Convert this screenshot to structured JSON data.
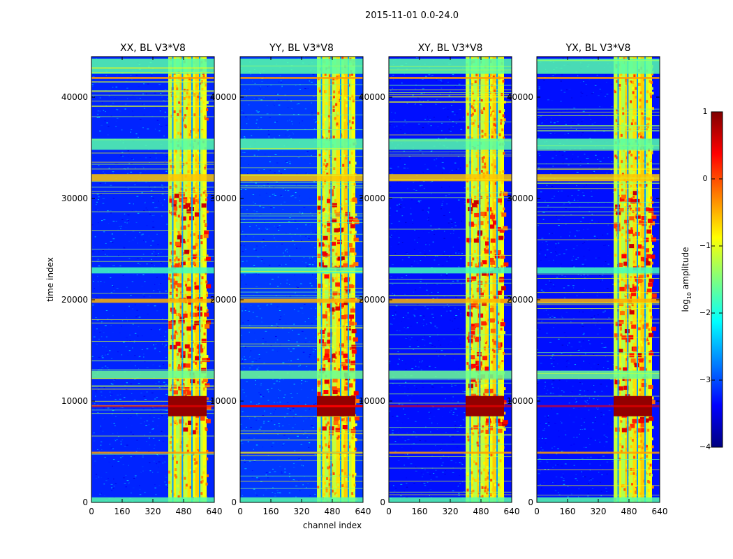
{
  "chart_data": {
    "type": "heatmap",
    "title": "2015-11-01 0.0-24.0",
    "xlabel": "channel index",
    "ylabel": "time index",
    "colorbar_label": "log10 amplitude",
    "colorbar_label_parts": {
      "base": "log",
      "subscript": "10",
      "rest": " amplitude"
    },
    "xlim": [
      0,
      640
    ],
    "ylim": [
      0,
      44000
    ],
    "x_ticks": [
      "0",
      "160",
      "320",
      "480",
      "640"
    ],
    "x_tick_values": [
      0,
      160,
      320,
      480,
      640
    ],
    "y_ticks": [
      "0",
      "10000",
      "20000",
      "30000",
      "40000"
    ],
    "y_tick_values": [
      0,
      10000,
      20000,
      30000,
      40000
    ],
    "colorbar_range": [
      -4,
      1
    ],
    "colorbar_ticks": [
      "1",
      "0",
      "−1",
      "−2",
      "−3",
      "−4"
    ],
    "colorbar_tick_values": [
      1,
      0,
      -1,
      -2,
      -3,
      -4
    ],
    "colormap": [
      "#00007f",
      "#0000ff",
      "#007fff",
      "#00ffff",
      "#7fff7f",
      "#ffff00",
      "#ff7f00",
      "#ff0000",
      "#7f0000"
    ],
    "panels": [
      {
        "title": "XX, BL V3*V8",
        "background_level": -3.2,
        "band_channel_start": 400,
        "band_channel_end": 600,
        "flare_time_range": [
          8500,
          10500
        ]
      },
      {
        "title": "YY, BL V3*V8",
        "background_level": -3.1,
        "band_channel_start": 400,
        "band_channel_end": 600,
        "flare_time_range": [
          8500,
          10500
        ]
      },
      {
        "title": "XY, BL V3*V8",
        "background_level": -3.3,
        "band_channel_start": 400,
        "band_channel_end": 600,
        "flare_time_range": [
          8500,
          10500
        ]
      },
      {
        "title": "YX, BL V3*V8",
        "background_level": -3.3,
        "band_channel_start": 400,
        "band_channel_end": 600,
        "flare_time_range": [
          8500,
          10500
        ]
      }
    ],
    "rfi_band_levels": [
      {
        "t0": 0,
        "t1": 500,
        "level": -1.7
      },
      {
        "t0": 4800,
        "t1": 5000,
        "level": -0.4
      },
      {
        "t0": 12200,
        "t1": 13000,
        "level": -1.6
      },
      {
        "t0": 19700,
        "t1": 20100,
        "level": -0.5
      },
      {
        "t0": 22600,
        "t1": 23200,
        "level": -1.8
      },
      {
        "t0": 31700,
        "t1": 32400,
        "level": -0.6
      },
      {
        "t0": 34800,
        "t1": 35900,
        "level": -1.7
      },
      {
        "t0": 41800,
        "t1": 42000,
        "level": -0.4
      },
      {
        "t0": 42300,
        "t1": 43800,
        "level": -1.7
      }
    ]
  }
}
